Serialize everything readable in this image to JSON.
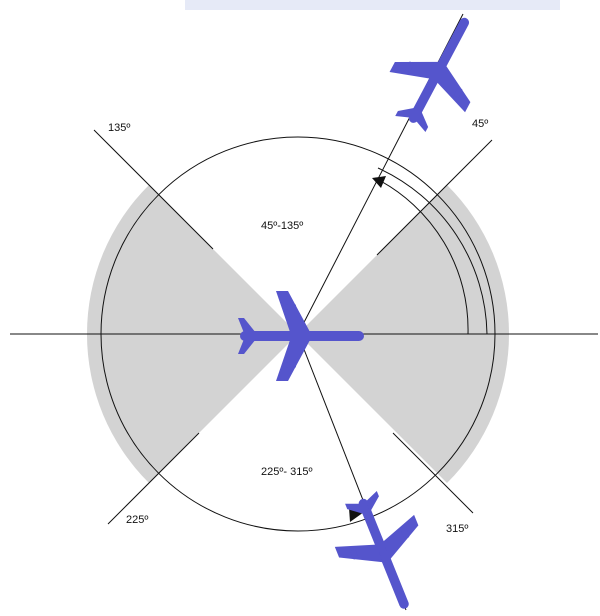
{
  "labels": {
    "angle_135": "135º",
    "angle_45": "45º",
    "angle_225": "225º",
    "angle_315": "315º",
    "sector_top": "45º-135º",
    "sector_bottom": "225º- 315º"
  },
  "colors": {
    "aircraft": "#5555cc",
    "shaded_sector": "#d3d3d3",
    "line": "#111111",
    "top_banner": "#e6eaf7"
  },
  "icons": {
    "central_aircraft": "aircraft-icon",
    "upper_aircraft": "aircraft-icon",
    "lower_aircraft": "aircraft-icon",
    "arrowhead": "arrowhead-icon"
  }
}
